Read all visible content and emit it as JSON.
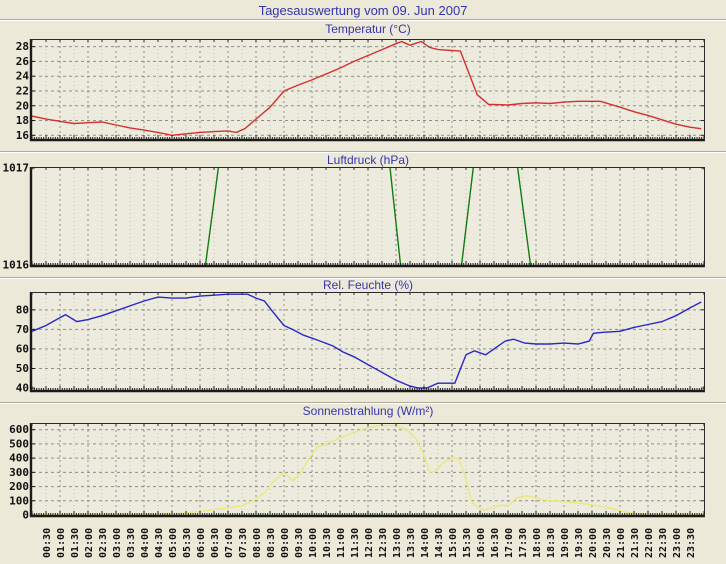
{
  "page": {
    "title": "Tagesauswertung vom 09. Jun 2007",
    "title_color": "#3434b0",
    "background_color": "#ece9d8",
    "plot_background_color": "#ecebdd"
  },
  "time_axis": {
    "start_hour": 0,
    "end_hour": 24,
    "tick_interval_minutes": 30,
    "labels": [
      "00:30",
      "01:00",
      "01:30",
      "02:00",
      "02:30",
      "03:00",
      "03:30",
      "04:00",
      "04:30",
      "05:00",
      "05:30",
      "06:00",
      "06:30",
      "07:00",
      "07:30",
      "08:00",
      "08:30",
      "09:00",
      "09:30",
      "10:00",
      "10:30",
      "11:00",
      "11:30",
      "12:00",
      "12:30",
      "13:00",
      "13:30",
      "14:00",
      "14:30",
      "15:00",
      "15:30",
      "16:00",
      "16:30",
      "17:00",
      "17:30",
      "18:00",
      "18:30",
      "19:00",
      "19:30",
      "20:00",
      "20:30",
      "21:00",
      "21:30",
      "22:00",
      "22:30",
      "23:00",
      "23:30"
    ]
  },
  "chart_data": [
    {
      "type": "line",
      "name": "temperature-chart",
      "title": "Temperatur (°C)",
      "color": "#d62f2f",
      "ylim": [
        15.5,
        28.9
      ],
      "yticks": [
        16,
        18,
        20,
        22,
        24,
        26,
        28
      ],
      "grid": true,
      "legend": "none",
      "x_unit": "hours",
      "points": [
        [
          0,
          18.6
        ],
        [
          0.5,
          18.2
        ],
        [
          1,
          17.9
        ],
        [
          1.5,
          17.6
        ],
        [
          2,
          17.7
        ],
        [
          2.5,
          17.8
        ],
        [
          3,
          17.4
        ],
        [
          3.5,
          17.0
        ],
        [
          4,
          16.7
        ],
        [
          4.5,
          16.4
        ],
        [
          5,
          16.0
        ],
        [
          5.5,
          16.2
        ],
        [
          6,
          16.4
        ],
        [
          6.5,
          16.5
        ],
        [
          7,
          16.6
        ],
        [
          7.3,
          16.4
        ],
        [
          7.6,
          16.9
        ],
        [
          8,
          18.2
        ],
        [
          8.5,
          19.8
        ],
        [
          9,
          22.0
        ],
        [
          9.5,
          22.8
        ],
        [
          10,
          23.5
        ],
        [
          10.5,
          24.3
        ],
        [
          11,
          25.1
        ],
        [
          11.5,
          26.0
        ],
        [
          12,
          26.8
        ],
        [
          12.5,
          27.6
        ],
        [
          13,
          28.4
        ],
        [
          13.2,
          28.7
        ],
        [
          13.5,
          28.2
        ],
        [
          13.9,
          28.7
        ],
        [
          14.2,
          27.9
        ],
        [
          14.5,
          27.6
        ],
        [
          15.3,
          27.4
        ],
        [
          15.9,
          21.5
        ],
        [
          16.3,
          20.2
        ],
        [
          17,
          20.1
        ],
        [
          17.5,
          20.3
        ],
        [
          18,
          20.4
        ],
        [
          18.5,
          20.3
        ],
        [
          19,
          20.5
        ],
        [
          19.5,
          20.6
        ],
        [
          20.3,
          20.6
        ],
        [
          21,
          19.8
        ],
        [
          21.5,
          19.2
        ],
        [
          22,
          18.7
        ],
        [
          22.5,
          18.1
        ],
        [
          23,
          17.5
        ],
        [
          23.5,
          17.1
        ],
        [
          23.9,
          16.9
        ]
      ]
    },
    {
      "type": "line",
      "name": "pressure-chart",
      "title": "Luftdruck (hPa)",
      "color": "#117d11",
      "ylim": [
        1016,
        1017
      ],
      "yticks": [
        1016,
        1017
      ],
      "grid": true,
      "legend": "none",
      "x_unit": "hours",
      "points": [
        [
          0,
          1015.9
        ],
        [
          6.15,
          1015.9
        ],
        [
          6.7,
          1017.1
        ],
        [
          12.75,
          1017.1
        ],
        [
          13.2,
          1015.9
        ],
        [
          15.3,
          1015.9
        ],
        [
          15.8,
          1017.1
        ],
        [
          17.3,
          1017.1
        ],
        [
          17.85,
          1015.9
        ],
        [
          23.9,
          1015.9
        ]
      ]
    },
    {
      "type": "line",
      "name": "humidity-chart",
      "title": "Rel. Feuchte (%)",
      "color": "#2828c8",
      "ylim": [
        39,
        88.6
      ],
      "yticks": [
        40,
        50,
        60,
        70,
        80
      ],
      "grid": true,
      "legend": "none",
      "x_unit": "hours",
      "points": [
        [
          0,
          69
        ],
        [
          0.5,
          72
        ],
        [
          1,
          76
        ],
        [
          1.2,
          77.5
        ],
        [
          1.6,
          74
        ],
        [
          2,
          75
        ],
        [
          2.5,
          77
        ],
        [
          3,
          79.5
        ],
        [
          3.5,
          82
        ],
        [
          4,
          84.5
        ],
        [
          4.5,
          86.5
        ],
        [
          5,
          86
        ],
        [
          5.5,
          86
        ],
        [
          6,
          87
        ],
        [
          6.5,
          87.5
        ],
        [
          7,
          88
        ],
        [
          7.7,
          88
        ],
        [
          8,
          86
        ],
        [
          8.3,
          84.5
        ],
        [
          8.6,
          79
        ],
        [
          9,
          72
        ],
        [
          9.3,
          70
        ],
        [
          9.7,
          67
        ],
        [
          10.2,
          64.5
        ],
        [
          10.75,
          61.5
        ],
        [
          11.1,
          58.5
        ],
        [
          11.5,
          56
        ],
        [
          12,
          52
        ],
        [
          12.5,
          48
        ],
        [
          13,
          44
        ],
        [
          13.5,
          41
        ],
        [
          13.8,
          40
        ],
        [
          14.1,
          40
        ],
        [
          14.5,
          42.5
        ],
        [
          15.1,
          42.5
        ],
        [
          15.5,
          57
        ],
        [
          15.8,
          59
        ],
        [
          16.2,
          57
        ],
        [
          16.9,
          64
        ],
        [
          17.2,
          65
        ],
        [
          17.6,
          63
        ],
        [
          18,
          62.5
        ],
        [
          18.5,
          62.5
        ],
        [
          19,
          63
        ],
        [
          19.5,
          62.5
        ],
        [
          19.9,
          64
        ],
        [
          20.05,
          68
        ],
        [
          20.4,
          68.5
        ],
        [
          21,
          69
        ],
        [
          21.5,
          71
        ],
        [
          22,
          72.5
        ],
        [
          22.5,
          74
        ],
        [
          23,
          77
        ],
        [
          23.5,
          81
        ],
        [
          23.9,
          84
        ]
      ]
    },
    {
      "type": "line",
      "name": "solar-radiation-chart",
      "title": "Sonnenstrahlung (W/m²)",
      "color": "#ebe87c",
      "ylim": [
        0,
        640
      ],
      "yticks": [
        0,
        100,
        200,
        300,
        400,
        500,
        600
      ],
      "grid": true,
      "legend": "none",
      "x_unit": "hours",
      "points": [
        [
          0,
          0
        ],
        [
          4.8,
          0
        ],
        [
          5.3,
          10
        ],
        [
          6,
          25
        ],
        [
          6.5,
          38
        ],
        [
          7,
          50
        ],
        [
          7.5,
          65
        ],
        [
          7.9,
          100
        ],
        [
          8.3,
          155
        ],
        [
          8.6,
          230
        ],
        [
          9,
          300
        ],
        [
          9.3,
          240
        ],
        [
          9.6,
          300
        ],
        [
          9.9,
          400
        ],
        [
          10.2,
          480
        ],
        [
          10.5,
          500
        ],
        [
          11,
          540
        ],
        [
          11.5,
          580
        ],
        [
          12,
          615
        ],
        [
          12.4,
          630
        ],
        [
          13,
          628
        ],
        [
          13.4,
          600
        ],
        [
          13.7,
          540
        ],
        [
          14,
          420
        ],
        [
          14.2,
          300
        ],
        [
          14.4,
          310
        ],
        [
          14.7,
          370
        ],
        [
          15,
          400
        ],
        [
          15.25,
          395
        ],
        [
          15.5,
          250
        ],
        [
          15.7,
          90
        ],
        [
          16,
          45
        ],
        [
          16.15,
          35
        ],
        [
          16.5,
          55
        ],
        [
          16.8,
          70
        ],
        [
          17,
          62
        ],
        [
          17.3,
          120
        ],
        [
          17.6,
          135
        ],
        [
          17.9,
          125
        ],
        [
          18.3,
          105
        ],
        [
          18.9,
          95
        ],
        [
          19.5,
          85
        ],
        [
          20.1,
          68
        ],
        [
          20.7,
          45
        ],
        [
          21.2,
          22
        ],
        [
          21.7,
          5
        ],
        [
          21.9,
          0
        ],
        [
          23.9,
          0
        ]
      ]
    }
  ]
}
